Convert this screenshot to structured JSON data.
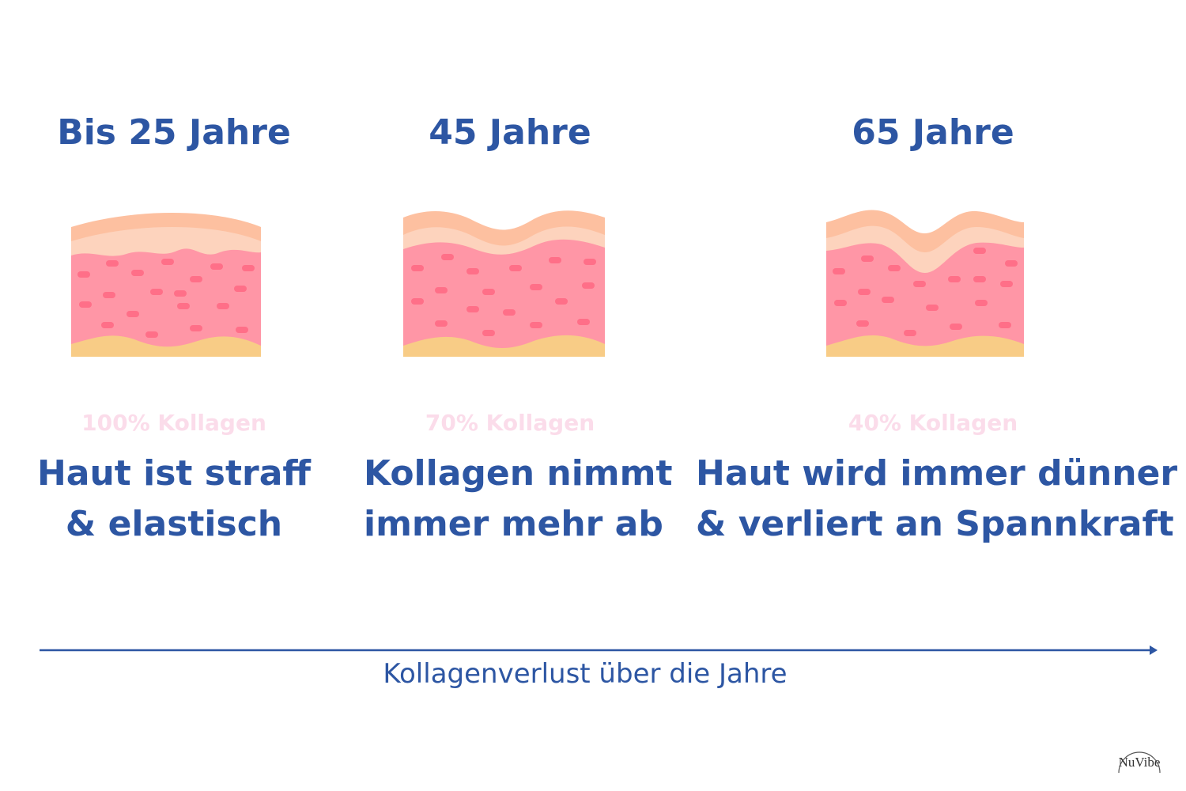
{
  "stages": [
    {
      "age": "Bis 25 Jahre",
      "collagen": "100% Kollagen",
      "desc_line1": "Haut ist straff",
      "desc_line2": "& elastisch"
    },
    {
      "age": "45 Jahre",
      "collagen": "70% Kollagen",
      "desc_line1": "Kollagen nimmt",
      "desc_line2": "immer mehr ab"
    },
    {
      "age": "65 Jahre",
      "collagen": "40% Kollagen",
      "desc_line1": "Haut wird immer dünner",
      "desc_line2": "& verliert an Spannkraft"
    }
  ],
  "axis_label": "Kollagenverlust über die Jahre",
  "logo_text": "NuVibe",
  "colors": {
    "title": "#2d56a3",
    "collagen_label": "#fbdcea",
    "epidermis_outer": "#fdc0a0",
    "epidermis_inner": "#fdd3bd",
    "dermis": "#ff96a6",
    "dermis_cells": "#ff6f88",
    "subcutis": "#f8cc86"
  }
}
